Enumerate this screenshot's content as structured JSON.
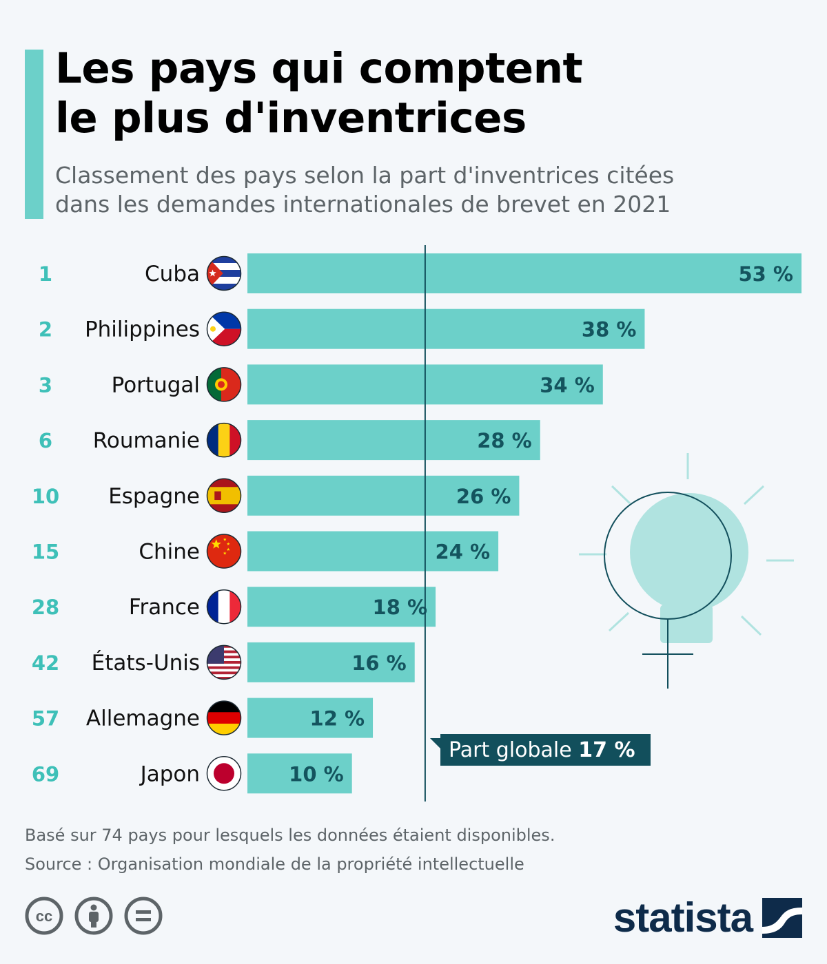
{
  "header": {
    "title_line1": "Les pays qui comptent",
    "title_line2": "le plus d'inventrices",
    "subtitle_line1": "Classement des pays selon la part d'inventrices citées",
    "subtitle_line2": "dans les demandes internationales de brevet en 2021"
  },
  "colors": {
    "bar": "#6cd0c9",
    "rank": "#3ec0b8",
    "value_label": "#14545e",
    "reference_line": "#124f5c",
    "callout_bg": "#124f5c",
    "brand": "#0e2b4a"
  },
  "chart_data": {
    "type": "bar",
    "orientation": "horizontal",
    "title": "Les pays qui comptent le plus d'inventrices",
    "unit": "%",
    "categories": [
      "Cuba",
      "Philippines",
      "Portugal",
      "Roumanie",
      "Espagne",
      "Chine",
      "France",
      "États-Unis",
      "Allemagne",
      "Japon"
    ],
    "ranks": [
      1,
      2,
      3,
      6,
      10,
      15,
      28,
      42,
      57,
      69
    ],
    "values": [
      53,
      38,
      34,
      28,
      26,
      24,
      18,
      16,
      12,
      10
    ],
    "value_labels": [
      "53 %",
      "38 %",
      "34 %",
      "28 %",
      "26 %",
      "24 %",
      "18 %",
      "16 %",
      "12 %",
      "10 %"
    ],
    "flags": [
      "cuba-flag-icon",
      "philippines-flag-icon",
      "portugal-flag-icon",
      "romania-flag-icon",
      "spain-flag-icon",
      "china-flag-icon",
      "france-flag-icon",
      "usa-flag-icon",
      "germany-flag-icon",
      "japan-flag-icon"
    ],
    "xlim": [
      0,
      53
    ],
    "reference": {
      "value": 17,
      "label": "Part globale",
      "value_label": "17 %"
    }
  },
  "footer": {
    "note": "Basé sur 74 pays pour lesquels les données étaient disponibles.",
    "source": "Source : Organisation mondiale de la propriété intellectuelle",
    "brand": "statista",
    "license_icons": [
      "cc-icon",
      "by-icon",
      "nd-icon"
    ]
  }
}
